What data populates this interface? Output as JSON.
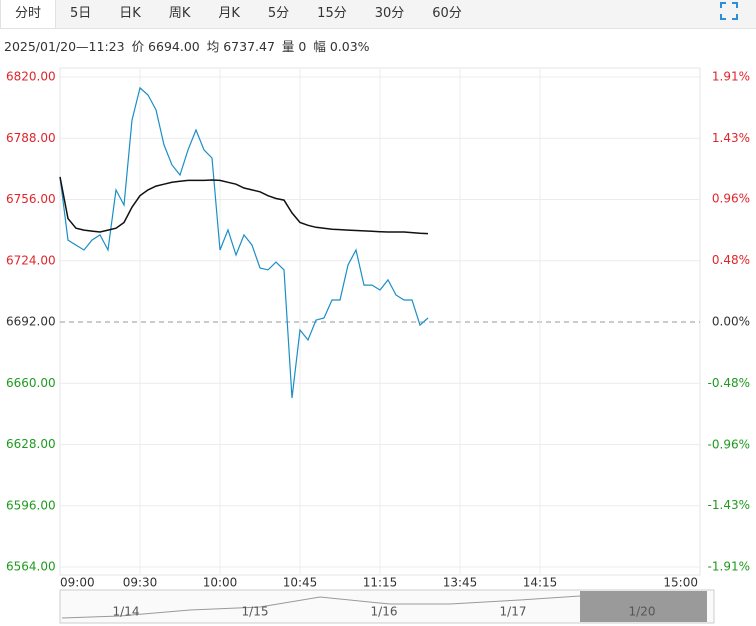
{
  "tabs": {
    "items": [
      "分时",
      "5日",
      "日K",
      "周K",
      "月K",
      "5分",
      "15分",
      "30分",
      "60分"
    ],
    "active": 0
  },
  "info": [
    "2025/01/20—11:23",
    "价 6694.00",
    "均 6737.47",
    "量 0",
    "幅 0.03%"
  ],
  "chart_data": {
    "type": "line",
    "x": [
      0,
      3,
      6,
      9,
      12,
      15,
      18,
      21,
      24,
      27,
      30,
      33,
      36,
      39,
      42,
      45,
      48,
      51,
      54,
      57,
      60,
      63,
      66,
      69,
      72,
      75,
      78,
      81,
      84,
      87,
      90,
      93,
      96,
      99,
      102,
      105,
      108,
      111,
      114,
      117,
      120,
      123,
      126,
      129,
      132,
      135,
      138
    ],
    "series": [
      {
        "name": "价",
        "color": "#1a8fc6",
        "values": [
          6767.8,
          6734.8,
          6732.2,
          6729.6,
          6734.8,
          6737.5,
          6729.6,
          6761.0,
          6753.1,
          6797.5,
          6814.3,
          6810.6,
          6802.8,
          6784.5,
          6774.0,
          6768.8,
          6781.9,
          6792.3,
          6781.9,
          6777.7,
          6729.6,
          6740.1,
          6727.0,
          6737.5,
          6732.2,
          6720.2,
          6719.2,
          6723.3,
          6719.2,
          6652.3,
          6687.8,
          6682.6,
          6693.0,
          6694.1,
          6703.5,
          6703.5,
          6721.8,
          6729.6,
          6711.3,
          6711.3,
          6708.7,
          6714.0,
          6706.1,
          6703.5,
          6703.5,
          6690.4,
          6694.1
        ]
      },
      {
        "name": "均",
        "color": "#111111",
        "values": [
          6767.8,
          6746,
          6741,
          6740,
          6739.5,
          6739,
          6740,
          6741,
          6744,
          6752,
          6758,
          6761,
          6763,
          6764,
          6765,
          6765.5,
          6766,
          6766,
          6766,
          6766.2,
          6766,
          6765,
          6764,
          6762,
          6761,
          6760,
          6758,
          6756.5,
          6755.7,
          6749,
          6744,
          6742.5,
          6741.5,
          6741,
          6740.5,
          6740.3,
          6740,
          6739.8,
          6739.6,
          6739.4,
          6739.2,
          6739,
          6739,
          6739,
          6738.7,
          6738.4,
          6738.2
        ]
      }
    ],
    "xlim": [
      0,
      240
    ],
    "xticks": [
      {
        "value": 0,
        "label": "09:00"
      },
      {
        "value": 30,
        "label": "09:30"
      },
      {
        "value": 60,
        "label": "10:00"
      },
      {
        "value": 90,
        "label": "10:45"
      },
      {
        "value": 120,
        "label": "11:15"
      },
      {
        "value": 150,
        "label": "13:45"
      },
      {
        "value": 180,
        "label": "14:15"
      },
      {
        "value": 240,
        "label": "15:00"
      }
    ],
    "ylim": [
      6564,
      6820
    ],
    "yticks": [
      {
        "value": 6820,
        "label": "6820.00"
      },
      {
        "value": 6788,
        "label": "6788.00"
      },
      {
        "value": 6756,
        "label": "6756.00"
      },
      {
        "value": 6724,
        "label": "6724.00"
      },
      {
        "value": 6692,
        "label": "6692.00"
      },
      {
        "value": 6660,
        "label": "6660.00"
      },
      {
        "value": 6628,
        "label": "6628.00"
      },
      {
        "value": 6596,
        "label": "6596.00"
      },
      {
        "value": 6564,
        "label": "6564.00"
      }
    ],
    "y2lim": [
      -1.91,
      1.91
    ],
    "y2ticks": [
      {
        "value": 1.91,
        "label": "1.91%"
      },
      {
        "value": 1.43,
        "label": "1.43%"
      },
      {
        "value": 0.96,
        "label": "0.96%"
      },
      {
        "value": 0.48,
        "label": "0.48%"
      },
      {
        "value": 0,
        "label": "0.00%"
      },
      {
        "value": -0.48,
        "label": "-0.48%"
      },
      {
        "value": -0.96,
        "label": "-0.96%"
      },
      {
        "value": -1.43,
        "label": "-1.43%"
      },
      {
        "value": -1.91,
        "label": "-1.91%"
      }
    ],
    "baseline": 6692,
    "up_color": "#e0252b",
    "down_color": "#1f9a1f",
    "flat_color": "#333333",
    "grid": true
  },
  "navigator": [
    "1/14",
    "1/15",
    "1/16",
    "1/17",
    "1/20"
  ]
}
